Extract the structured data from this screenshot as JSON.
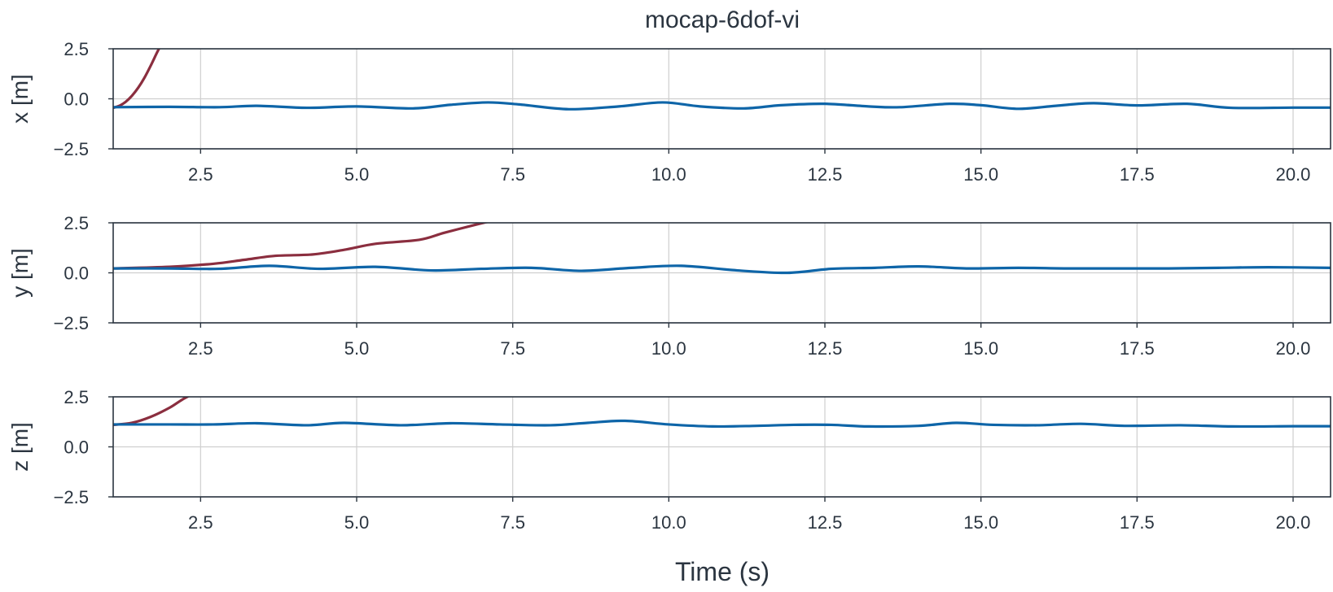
{
  "chart_data": {
    "type": "line",
    "title": "mocap-6dof-vi",
    "xlabel": "Time (s)",
    "xlim": [
      1.1,
      20.6
    ],
    "x_ticks": [
      2.5,
      5.0,
      7.5,
      10.0,
      12.5,
      15.0,
      17.5,
      20.0
    ],
    "x_tick_labels": [
      "2.5",
      "5.0",
      "7.5",
      "10.0",
      "12.5",
      "15.0",
      "17.5",
      "20.0"
    ],
    "grid": true,
    "series_colors": {
      "estimate": "#8b2e3f",
      "ground_truth": "#0e65a8"
    },
    "panels": [
      {
        "ylabel": "x [m]",
        "ylim": [
          -2.5,
          2.5
        ],
        "y_ticks": [
          -2.5,
          0.0,
          2.5
        ],
        "y_tick_labels": [
          "−2.5",
          "0.0",
          "2.5"
        ],
        "series": [
          {
            "role": "estimate",
            "x": [
              1.1,
              1.2,
              1.3,
              1.4,
              1.5,
              1.6,
              1.7,
              1.8,
              1.85
            ],
            "y": [
              -0.45,
              -0.35,
              -0.15,
              0.15,
              0.55,
              1.05,
              1.65,
              2.3,
              2.6
            ]
          },
          {
            "role": "ground_truth",
            "x": [
              1.1,
              2.0,
              2.8,
              3.4,
              4.2,
              5.0,
              5.9,
              6.5,
              7.1,
              7.6,
              8.4,
              9.2,
              9.9,
              10.5,
              11.2,
              11.8,
              12.5,
              13.2,
              13.7,
              14.5,
              15.0,
              15.6,
              16.2,
              16.8,
              17.5,
              18.3,
              19.0,
              20.0,
              20.6
            ],
            "y": [
              -0.42,
              -0.4,
              -0.42,
              -0.35,
              -0.45,
              -0.38,
              -0.48,
              -0.3,
              -0.18,
              -0.28,
              -0.52,
              -0.38,
              -0.18,
              -0.38,
              -0.48,
              -0.32,
              -0.25,
              -0.38,
              -0.42,
              -0.25,
              -0.32,
              -0.5,
              -0.35,
              -0.22,
              -0.33,
              -0.25,
              -0.45,
              -0.44,
              -0.44
            ]
          }
        ]
      },
      {
        "ylabel": "y [m]",
        "ylim": [
          -2.5,
          2.5
        ],
        "y_ticks": [
          -2.5,
          0.0,
          2.5
        ],
        "y_tick_labels": [
          "−2.5",
          "0.0",
          "2.5"
        ],
        "series": [
          {
            "role": "estimate",
            "x": [
              1.1,
              2.0,
              2.7,
              3.2,
              3.7,
              4.3,
              4.8,
              5.3,
              6.0,
              6.4,
              6.9,
              7.1
            ],
            "y": [
              0.22,
              0.3,
              0.45,
              0.65,
              0.85,
              0.92,
              1.15,
              1.45,
              1.65,
              2.0,
              2.4,
              2.55
            ]
          },
          {
            "role": "ground_truth",
            "x": [
              1.1,
              2.0,
              2.8,
              3.6,
              4.4,
              5.3,
              6.2,
              7.0,
              7.8,
              8.6,
              9.4,
              10.2,
              11.1,
              11.9,
              12.6,
              13.3,
              14.0,
              14.8,
              15.6,
              16.4,
              17.2,
              18.0,
              18.8,
              19.6,
              20.6
            ],
            "y": [
              0.22,
              0.22,
              0.2,
              0.35,
              0.2,
              0.3,
              0.12,
              0.2,
              0.25,
              0.1,
              0.25,
              0.35,
              0.12,
              0.0,
              0.2,
              0.25,
              0.32,
              0.22,
              0.25,
              0.22,
              0.22,
              0.22,
              0.25,
              0.28,
              0.25
            ]
          }
        ]
      },
      {
        "ylabel": "z [m]",
        "ylim": [
          -2.5,
          2.5
        ],
        "y_ticks": [
          -2.5,
          0.0,
          2.5
        ],
        "y_tick_labels": [
          "−2.5",
          "0.0",
          "2.5"
        ],
        "series": [
          {
            "role": "estimate",
            "x": [
              1.1,
              1.4,
              1.7,
              2.0,
              2.2,
              2.35
            ],
            "y": [
              1.1,
              1.2,
              1.5,
              1.95,
              2.35,
              2.6
            ]
          },
          {
            "role": "ground_truth",
            "x": [
              1.1,
              2.0,
              2.7,
              3.4,
              4.2,
              4.8,
              5.7,
              6.5,
              7.3,
              8.1,
              8.7,
              9.3,
              10.0,
              10.7,
              11.4,
              12.0,
              12.6,
              13.2,
              14.0,
              14.6,
              15.2,
              15.9,
              16.6,
              17.3,
              18.2,
              19.0,
              20.0,
              20.6
            ],
            "y": [
              1.12,
              1.12,
              1.12,
              1.18,
              1.08,
              1.2,
              1.08,
              1.18,
              1.12,
              1.08,
              1.2,
              1.3,
              1.12,
              1.02,
              1.05,
              1.1,
              1.1,
              1.02,
              1.05,
              1.2,
              1.1,
              1.08,
              1.15,
              1.05,
              1.08,
              1.02,
              1.03,
              1.03
            ]
          }
        ]
      }
    ]
  }
}
